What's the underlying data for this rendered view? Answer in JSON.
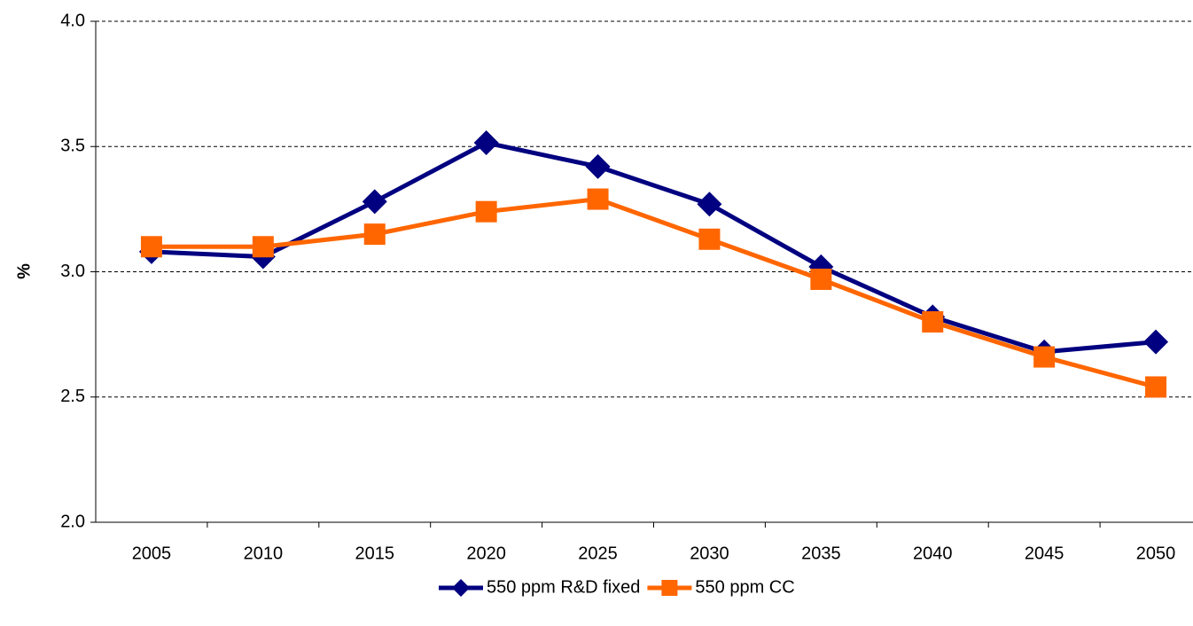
{
  "chart_data": {
    "type": "line",
    "y_label": "%",
    "categories": [
      "2005",
      "2010",
      "2015",
      "2020",
      "2025",
      "2030",
      "2035",
      "2040",
      "2045",
      "2050"
    ],
    "series": [
      {
        "name": "550 ppm R&D fixed",
        "color": "#000080",
        "marker": "diamond",
        "values": [
          3.08,
          3.06,
          3.28,
          3.515,
          3.42,
          3.27,
          3.02,
          2.82,
          2.68,
          2.72
        ]
      },
      {
        "name": "550 ppm CC",
        "color": "#ff6600",
        "marker": "square",
        "values": [
          3.1,
          3.1,
          3.15,
          3.24,
          3.29,
          3.13,
          2.97,
          2.8,
          2.66,
          2.54
        ]
      }
    ],
    "ylim": [
      2.0,
      4.0
    ],
    "yticks": [
      {
        "value": 2.0,
        "label": "2.0"
      },
      {
        "value": 2.5,
        "label": "2.5"
      },
      {
        "value": 3.0,
        "label": "3.0"
      },
      {
        "value": 3.5,
        "label": "3.5"
      },
      {
        "value": 4.0,
        "label": "4.0"
      }
    ],
    "grid": true,
    "legend": "bottom"
  }
}
